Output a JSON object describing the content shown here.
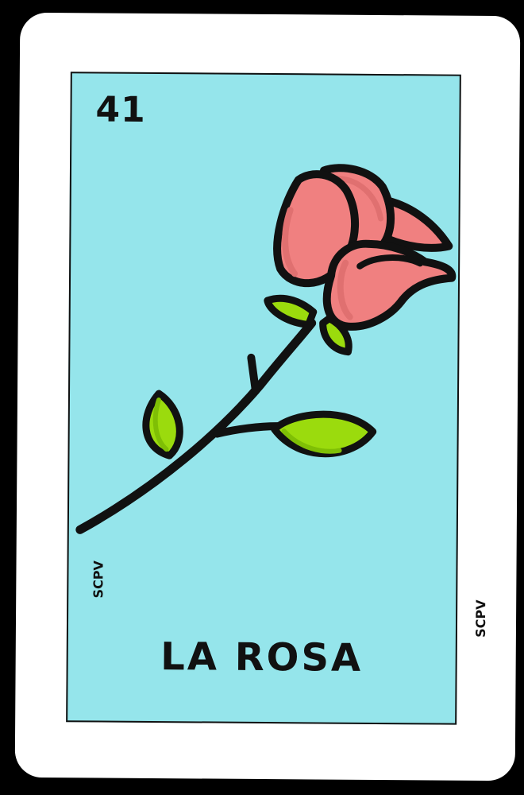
{
  "card": {
    "number": "41",
    "title": "LA ROSA",
    "credit_left": "SCPV",
    "credit_right": "SCPV"
  },
  "illustration": {
    "subject": "rose-icon",
    "colors": {
      "background": "#95e5eb",
      "petal": "#f08080",
      "petal_shade": "#e07070",
      "leaf": "#9bdb0d",
      "outline": "#111111",
      "card": "#ffffff",
      "frame": "#000000"
    }
  }
}
